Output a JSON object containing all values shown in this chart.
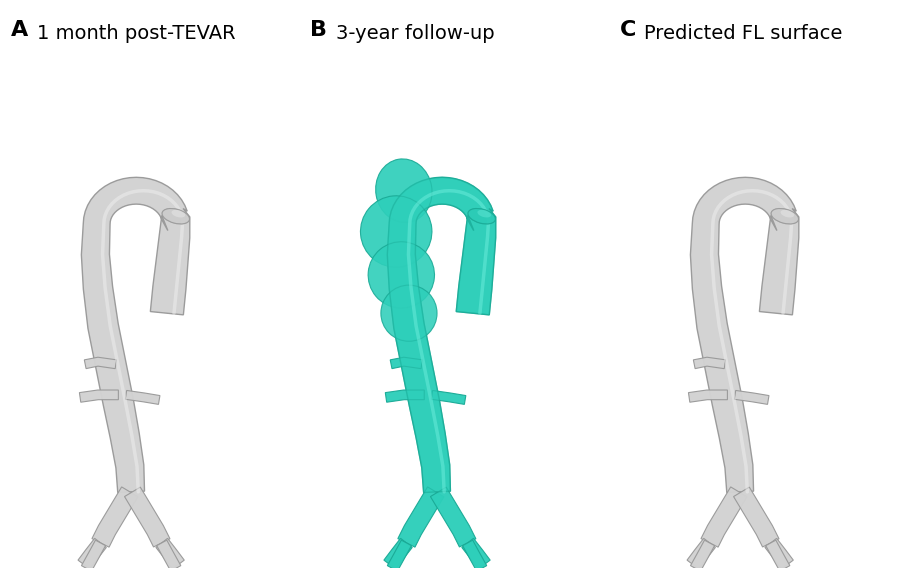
{
  "panel_labels": [
    "A",
    "B",
    "C"
  ],
  "panel_titles": [
    "1 month post-TEVAR",
    "3-year follow-up",
    "Predicted FL surface"
  ],
  "label_fontsize": 16,
  "title_fontsize": 14,
  "label_fontweight": "bold",
  "background_color": "#ffffff",
  "aorta_color_gray": "#d2d2d2",
  "aorta_color_teal": "#2ecfba",
  "aorta_edge_gray": "#999999",
  "aorta_edge_teal": "#1aaa96",
  "aorta_highlight_gray": "#f0f0f0",
  "aorta_highlight_teal": "#6eeedd"
}
